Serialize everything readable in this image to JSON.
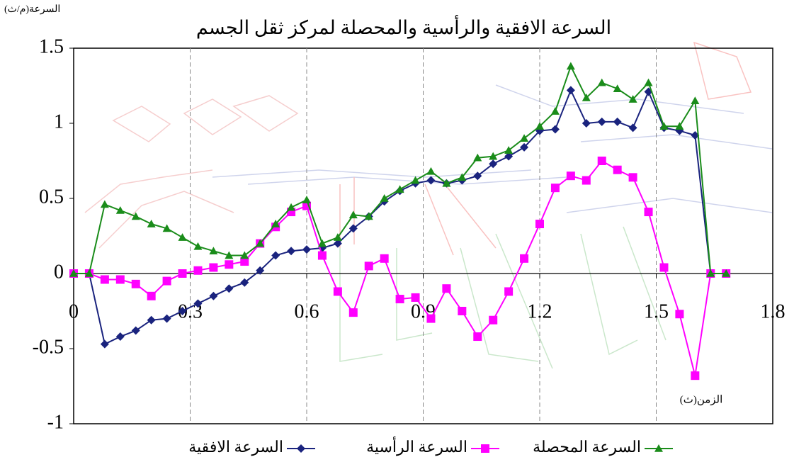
{
  "chart_data": {
    "type": "line",
    "title": "السرعة الافقية والرأسية والمحصلة لمركز ثقل الجسم",
    "y_label": "السرعة(م/ث)",
    "x_label": "الزمن(ث)",
    "x": [
      0,
      0.04,
      0.08,
      0.12,
      0.16,
      0.2,
      0.24,
      0.28,
      0.32,
      0.36,
      0.4,
      0.44,
      0.48,
      0.52,
      0.56,
      0.6,
      0.64,
      0.68,
      0.72,
      0.76,
      0.8,
      0.84,
      0.88,
      0.92,
      0.96,
      1.0,
      1.04,
      1.08,
      1.12,
      1.16,
      1.2,
      1.24,
      1.28,
      1.32,
      1.36,
      1.4,
      1.44,
      1.48,
      1.52,
      1.56,
      1.6,
      1.64,
      1.68
    ],
    "series": [
      {
        "name": "السرعة الافقية",
        "color": "#1a237e",
        "marker": "diamond",
        "values": [
          0,
          0,
          -0.47,
          -0.42,
          -0.38,
          -0.31,
          -0.3,
          -0.25,
          -0.2,
          -0.15,
          -0.1,
          -0.06,
          0.02,
          0.12,
          0.15,
          0.16,
          0.17,
          0.2,
          0.3,
          0.38,
          0.48,
          0.55,
          0.6,
          0.62,
          0.6,
          0.62,
          0.65,
          0.73,
          0.78,
          0.84,
          0.95,
          0.96,
          1.22,
          1.0,
          1.01,
          1.01,
          0.97,
          1.21,
          0.97,
          0.95,
          0.92,
          0,
          0
        ]
      },
      {
        "name": "السرعة الرأسية",
        "color": "#ff00ff",
        "marker": "square",
        "values": [
          0,
          0,
          -0.04,
          -0.04,
          -0.07,
          -0.15,
          -0.05,
          0,
          0.02,
          0.04,
          0.06,
          0.08,
          0.2,
          0.31,
          0.41,
          0.45,
          0.12,
          -0.12,
          -0.26,
          0.05,
          0.1,
          -0.17,
          -0.16,
          -0.3,
          -0.1,
          -0.25,
          -0.42,
          -0.31,
          -0.12,
          0.1,
          0.33,
          0.57,
          0.65,
          0.62,
          0.75,
          0.69,
          0.64,
          0.41,
          0.04,
          -0.27,
          -0.68,
          0,
          0
        ]
      },
      {
        "name": "السرعة المحصلة",
        "color": "#1a8c1a",
        "marker": "triangle",
        "values": [
          0,
          0,
          0.46,
          0.42,
          0.38,
          0.33,
          0.3,
          0.24,
          0.18,
          0.15,
          0.12,
          0.12,
          0.2,
          0.33,
          0.44,
          0.49,
          0.2,
          0.24,
          0.39,
          0.38,
          0.5,
          0.56,
          0.62,
          0.68,
          0.6,
          0.64,
          0.77,
          0.78,
          0.82,
          0.9,
          0.98,
          1.08,
          1.38,
          1.17,
          1.27,
          1.23,
          1.16,
          1.27,
          0.98,
          0.98,
          1.15,
          0,
          0
        ]
      }
    ],
    "xlim": [
      0,
      1.8
    ],
    "xticks": [
      0,
      0.3,
      0.6,
      0.9,
      1.2,
      1.5,
      1.8
    ],
    "ylim": [
      -1,
      1.5
    ],
    "yticks": [
      -1,
      -0.5,
      0,
      0.5,
      1,
      1.5
    ],
    "grid": true
  }
}
